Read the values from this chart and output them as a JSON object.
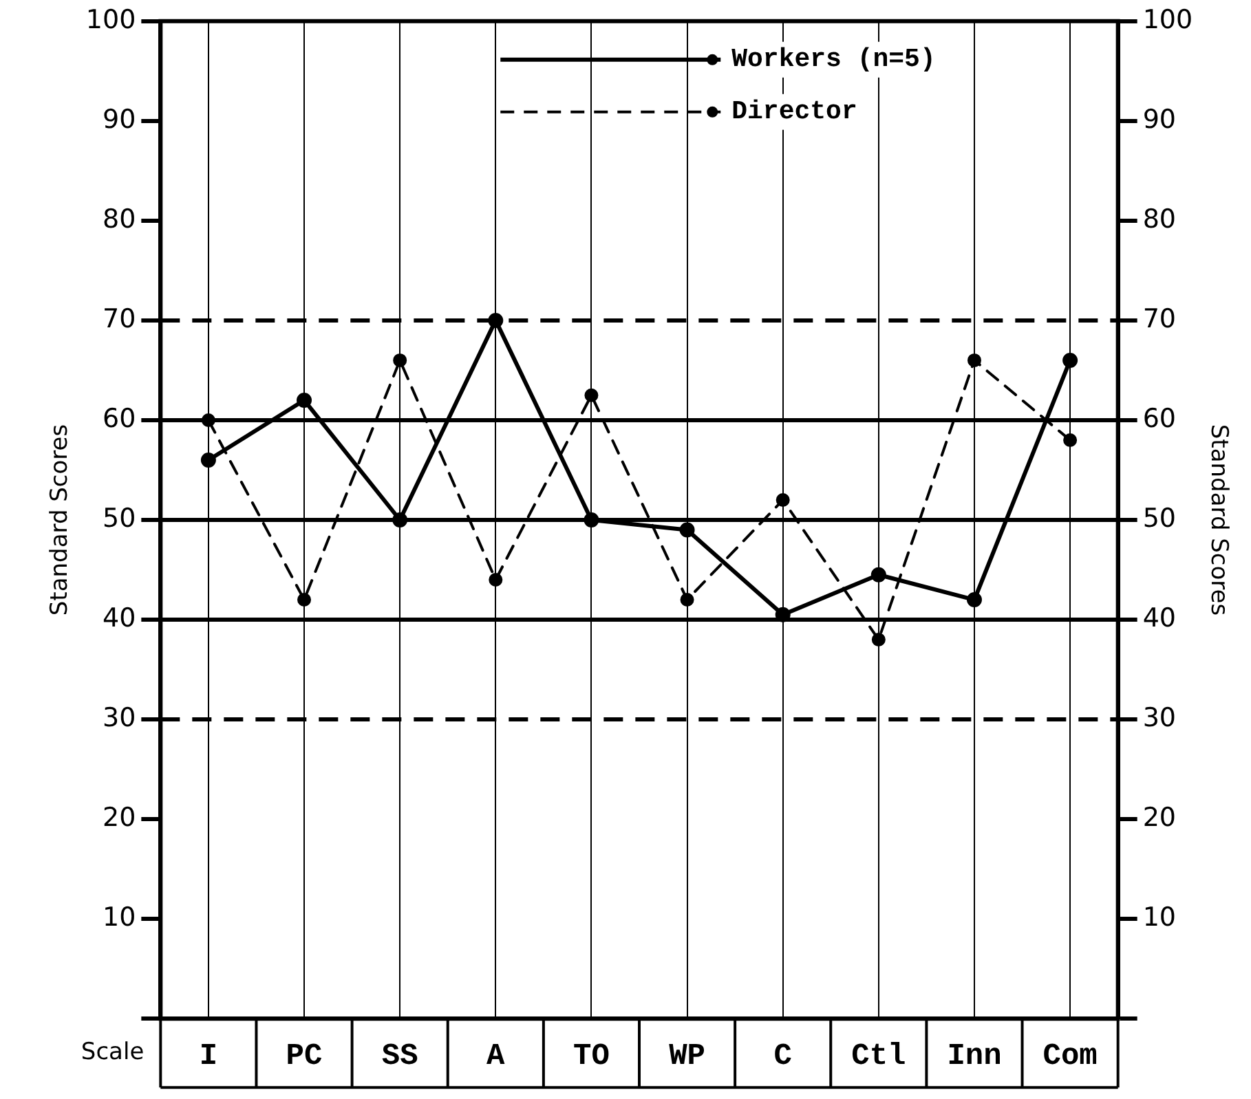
{
  "chart_data": {
    "type": "line",
    "categories": [
      "I",
      "PC",
      "SS",
      "A",
      "TO",
      "WP",
      "C",
      "Ctl",
      "Inn",
      "Com"
    ],
    "series": [
      {
        "name": "Workers (n=5)",
        "color": "#000000",
        "line_style": "solid",
        "values": [
          56,
          62,
          50,
          70,
          50,
          49,
          40.5,
          44.5,
          42,
          66
        ]
      },
      {
        "name": "Director",
        "color": "#000000",
        "line_style": "dashed",
        "values": [
          60,
          42,
          66,
          44,
          62.5,
          42,
          52,
          38,
          66,
          58
        ]
      }
    ],
    "xlabel": "Scale",
    "ylabel": "Standard Scores",
    "y2label": "Standard Scores",
    "ylim": [
      0,
      100
    ],
    "yticks": [
      {
        "value": 0,
        "label": null
      },
      10,
      20,
      30,
      40,
      50,
      60,
      70,
      80,
      90,
      100
    ],
    "y2lim": [
      0,
      100
    ],
    "y2ticks": [
      {
        "value": 0,
        "label": null
      },
      10,
      20,
      30,
      40,
      50,
      60,
      70,
      80,
      90,
      100
    ],
    "ref_lines": [
      {
        "axis": "y",
        "value": 70,
        "line_style": "dashed",
        "color": "#000000"
      },
      {
        "axis": "y",
        "value": 60,
        "line_style": "solid",
        "color": "#000000"
      },
      {
        "axis": "y",
        "value": 50,
        "line_style": "solid",
        "color": "#000000"
      },
      {
        "axis": "y",
        "value": 40,
        "line_style": "solid",
        "color": "#000000"
      },
      {
        "axis": "y",
        "value": 30,
        "line_style": "dashed",
        "color": "#000000"
      }
    ],
    "grid": "x",
    "legend": "top",
    "marker": "circle"
  }
}
